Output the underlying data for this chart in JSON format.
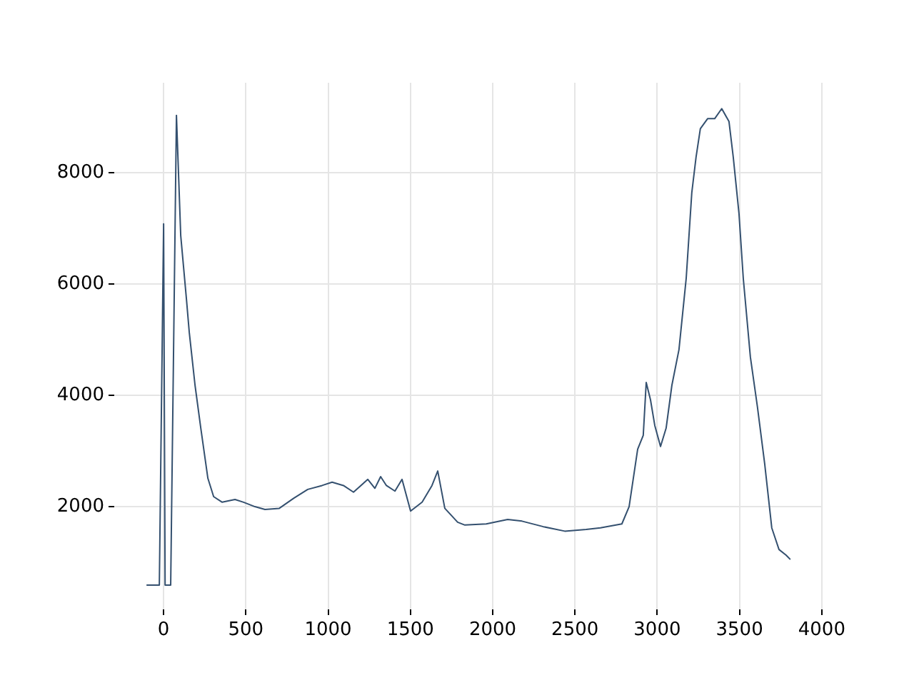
{
  "chart_data": {
    "type": "line",
    "x": [
      -104,
      -26,
      0,
      9,
      43,
      78,
      104,
      139,
      156,
      191,
      226,
      269,
      304,
      356,
      434,
      486,
      555,
      616,
      703,
      790,
      876,
      963,
      1024,
      1093,
      1154,
      1241,
      1284,
      1319,
      1354,
      1406,
      1449,
      1501,
      1571,
      1631,
      1666,
      1709,
      1787,
      1831,
      1961,
      2091,
      2178,
      2308,
      2438,
      2568,
      2655,
      2785,
      2829,
      2881,
      2915,
      2933,
      2959,
      2985,
      3020,
      3054,
      3089,
      3132,
      3176,
      3210,
      3236,
      3262,
      3306,
      3349,
      3392,
      3436,
      3462,
      3497,
      3523,
      3566,
      3609,
      3653,
      3696,
      3740,
      3783,
      3809
    ],
    "series": [
      {
        "color": "#34506f",
        "values": [
          590,
          590,
          7080,
          590,
          590,
          9030,
          6870,
          5720,
          5130,
          4180,
          3410,
          2510,
          2180,
          2080,
          2130,
          2080,
          2000,
          1950,
          1970,
          2150,
          2310,
          2380,
          2440,
          2380,
          2260,
          2490,
          2330,
          2540,
          2380,
          2280,
          2490,
          1920,
          2080,
          2380,
          2640,
          1970,
          1720,
          1670,
          1690,
          1770,
          1740,
          1640,
          1560,
          1590,
          1620,
          1690,
          2000,
          3030,
          3280,
          4230,
          3920,
          3460,
          3080,
          3410,
          4180,
          4820,
          6100,
          7640,
          8280,
          8790,
          8970,
          8970,
          9150,
          8920,
          8280,
          7260,
          6100,
          4690,
          3790,
          2770,
          1620,
          1230,
          1130,
          1050
        ]
      }
    ],
    "xlim": [
      -300,
      4005
    ],
    "ylim": [
      155,
      9615
    ],
    "xticks": [
      0,
      500,
      1000,
      1500,
      2000,
      2500,
      3000,
      3500,
      4000
    ],
    "yticks": [
      2000,
      4000,
      6000,
      8000
    ],
    "grid": true,
    "legend": false,
    "marker": "none",
    "line_style": "solid"
  }
}
